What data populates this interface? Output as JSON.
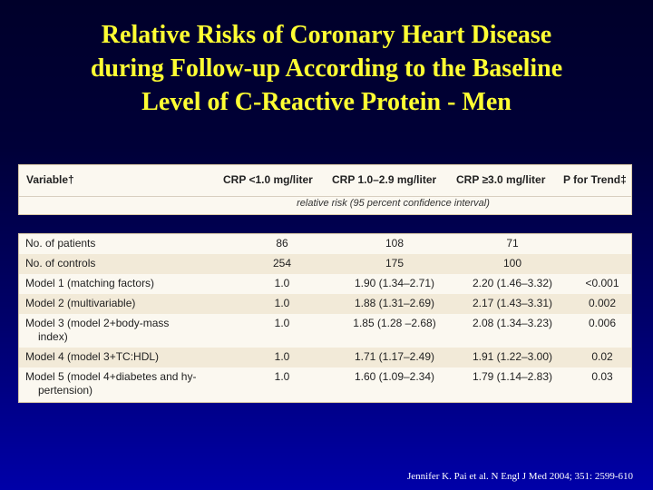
{
  "title": {
    "line1": "Relative Risks of Coronary Heart Disease",
    "line2": "during Follow-up According to the Baseline",
    "line3": "Level of C-Reactive Protein - Men"
  },
  "table": {
    "headers": [
      "Variable†",
      "CRP <1.0 mg/liter",
      "CRP 1.0–2.9 mg/liter",
      "CRP ≥3.0 mg/liter",
      "P for Trend‡"
    ],
    "subheader": "relative risk (95 percent confidence interval)",
    "rows": [
      {
        "label": [
          "No. of patients"
        ],
        "c1": "86",
        "c2": "108",
        "c3": "71",
        "p": ""
      },
      {
        "label": [
          "No. of controls"
        ],
        "c1": "254",
        "c2": "175",
        "c3": "100",
        "p": ""
      },
      {
        "label": [
          "Model 1 (matching factors)"
        ],
        "c1": "1.0",
        "c2": "1.90 (1.34–2.71)",
        "c3": "2.20 (1.46–3.32)",
        "p": "<0.001"
      },
      {
        "label": [
          "Model 2 (multivariable)"
        ],
        "c1": "1.0",
        "c2": "1.88 (1.31–2.69)",
        "c3": "2.17 (1.43–3.31)",
        "p": "0.002"
      },
      {
        "label": [
          "Model 3 (model 2+body-mass",
          "index)"
        ],
        "c1": "1.0",
        "c2": "1.85 (1.28 –2.68)",
        "c3": "2.08 (1.34–3.23)",
        "p": "0.006"
      },
      {
        "label": [
          "Model 4 (model 3+TC:HDL)"
        ],
        "c1": "1.0",
        "c2": "1.71 (1.17–2.49)",
        "c3": "1.91 (1.22–3.00)",
        "p": "0.02"
      },
      {
        "label": [
          "Model 5 (model 4+diabetes and hy-",
          "pertension)"
        ],
        "c1": "1.0",
        "c2": "1.60 (1.09–2.34)",
        "c3": "1.79 (1.14–2.83)",
        "p": "0.03"
      }
    ]
  },
  "citation": "Jennifer K. Pai et al. N Engl J Med 2004; 351: 2599-610"
}
